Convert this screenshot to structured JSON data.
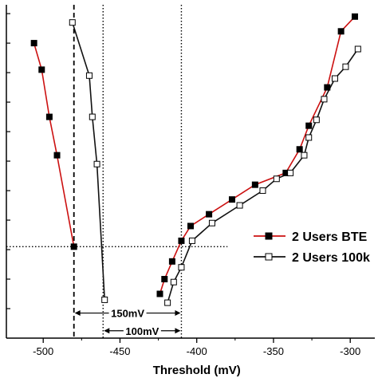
{
  "chart_data": {
    "type": "line",
    "xlabel": "Threshold (mV)",
    "ylabel": "",
    "xlim": [
      -524,
      -284
    ],
    "ylim": [
      0,
      11.3
    ],
    "x_ticks": [
      -500,
      -450,
      -400,
      -350,
      -300
    ],
    "x_tick_labels": [
      "-500",
      "-450",
      "-400",
      "-350",
      "-300"
    ],
    "y_minor_tick_count": 11,
    "grid": false,
    "legend_position": "right",
    "series": [
      {
        "name": "2 Users BTE",
        "line_color": "#cc1111",
        "marker": "filled-square",
        "segments": [
          {
            "x": [
              -506,
              -501,
              -496,
              -491,
              -480
            ],
            "y": [
              10.0,
              9.1,
              7.5,
              6.2,
              3.1
            ]
          },
          {
            "x": [
              -424,
              -421,
              -416,
              -410,
              -404,
              -392,
              -377,
              -362,
              -342,
              -333,
              -327,
              -315,
              -306,
              -297
            ],
            "y": [
              1.5,
              2.0,
              2.6,
              3.3,
              3.8,
              4.2,
              4.7,
              5.2,
              5.6,
              6.4,
              7.2,
              8.5,
              10.4,
              10.9
            ]
          }
        ]
      },
      {
        "name": "2 Users 100k",
        "line_color": "#111111",
        "marker": "open-square",
        "segments": [
          {
            "x": [
              -481,
              -470,
              -468,
              -465,
              -460
            ],
            "y": [
              10.7,
              8.9,
              7.5,
              5.9,
              1.3
            ]
          },
          {
            "x": [
              -419,
              -415,
              -410,
              -403,
              -390,
              -372,
              -357,
              -348,
              -339,
              -330,
              -327,
              -322,
              -317,
              -310,
              -303,
              -295
            ],
            "y": [
              1.2,
              1.9,
              2.4,
              3.3,
              3.9,
              4.5,
              5.0,
              5.4,
              5.6,
              6.2,
              6.8,
              7.4,
              8.1,
              8.8,
              9.2,
              9.8
            ]
          }
        ]
      }
    ],
    "reference_lines": [
      {
        "orientation": "vertical",
        "x": -480,
        "style": "dashed"
      },
      {
        "orientation": "vertical",
        "x": -461,
        "style": "dotted"
      },
      {
        "orientation": "vertical",
        "x": -410,
        "style": "dotted"
      },
      {
        "orientation": "horizontal",
        "y": 3.1,
        "style": "dotted"
      }
    ],
    "annotations": [
      {
        "text": "150mV",
        "x_from": -480,
        "x_to": -410,
        "y": 0.85
      },
      {
        "text": "100mV",
        "x_from": -461,
        "x_to": -410,
        "y": 0.25
      }
    ]
  }
}
